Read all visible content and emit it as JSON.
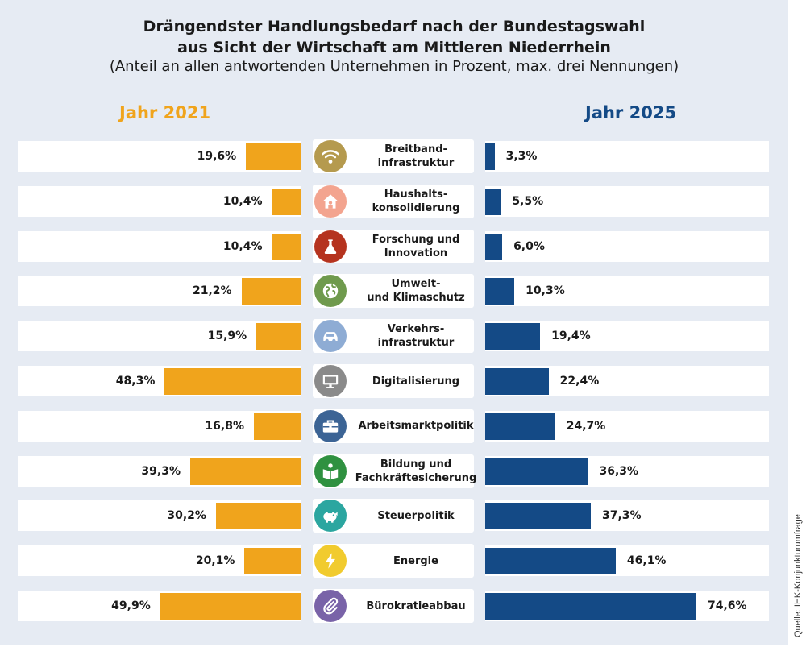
{
  "header": {
    "title_line1": "Drängendster Handlungsbedarf nach der Bundestagswahl",
    "title_line2": "aus Sicht der Wirtschaft am Mittleren Niederrhein",
    "subtitle": "(Anteil an allen antwortenden Unternehmen in Prozent, max. drei Nennungen)"
  },
  "source": "Quelle: IHK-Konjunkturumfrage",
  "colors": {
    "series_2021": "#f0a41c",
    "series_2025": "#144a86",
    "background": "#e6ebf3"
  },
  "chart_data": {
    "type": "bar",
    "orientation": "horizontal-butterfly",
    "title": "Drängendster Handlungsbedarf nach der Bundestagswahl aus Sicht der Wirtschaft am Mittleren Niederrhein",
    "subtitle": "(Anteil an allen antwortenden Unternehmen in Prozent, max. drei Nennungen)",
    "unit": "%",
    "xlim": [
      0,
      75
    ],
    "categories": [
      {
        "label": "Breitband-\ninfrastruktur",
        "icon": "wifi-icon",
        "icon_color": "#b59a4e"
      },
      {
        "label": "Haushalts-\nkonsolidierung",
        "icon": "house-icon",
        "icon_color": "#f3a48f"
      },
      {
        "label": "Forschung und\nInnovation",
        "icon": "flask-icon",
        "icon_color": "#b5331f"
      },
      {
        "label": "Umwelt-\nund Klimaschutz",
        "icon": "globe-icon",
        "icon_color": "#6f9a4d"
      },
      {
        "label": "Verkehrs-\ninfrastruktur",
        "icon": "car-icon",
        "icon_color": "#8eacd4"
      },
      {
        "label": "Digitalisierung",
        "icon": "monitor-icon",
        "icon_color": "#8a8a8a"
      },
      {
        "label": "Arbeitsmarktpolitik",
        "icon": "briefcase-icon",
        "icon_color": "#3c6495"
      },
      {
        "label": "Bildung und\nFachkräftesicherung",
        "icon": "book-reader-icon",
        "icon_color": "#2f9140"
      },
      {
        "label": "Steuerpolitik",
        "icon": "piggy-bank-icon",
        "icon_color": "#2ba6a0"
      },
      {
        "label": "Energie",
        "icon": "lightning-icon",
        "icon_color": "#f1cb2e"
      },
      {
        "label": "Bürokratieabbau",
        "icon": "paperclip-icon",
        "icon_color": "#7963a8"
      }
    ],
    "series": [
      {
        "name": "Jahr 2021",
        "side": "left",
        "values": [
          19.6,
          10.4,
          10.4,
          21.2,
          15.9,
          48.3,
          16.8,
          39.3,
          30.2,
          20.1,
          49.9
        ],
        "labels": [
          "19,6%",
          "10,4%",
          "10,4%",
          "21,2%",
          "15,9%",
          "48,3%",
          "16,8%",
          "39,3%",
          "30,2%",
          "20,1%",
          "49,9%"
        ]
      },
      {
        "name": "Jahr 2025",
        "side": "right",
        "values": [
          3.3,
          5.5,
          6.0,
          10.3,
          19.4,
          22.4,
          24.7,
          36.3,
          37.3,
          46.1,
          74.6
        ],
        "labels": [
          "3,3%",
          "5,5%",
          "6,0%",
          "10,3%",
          "19,4%",
          "22,4%",
          "24,7%",
          "36,3%",
          "37,3%",
          "46,1%",
          "74,6%"
        ]
      }
    ]
  }
}
